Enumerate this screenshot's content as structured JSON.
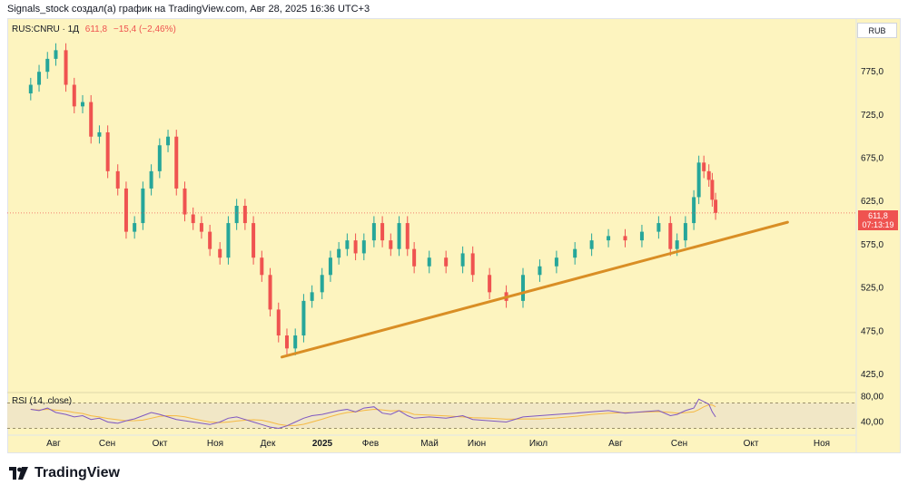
{
  "header": {
    "attribution": "Signals_stock создал(а) график на TradingView.com, Авг 28, 2025 16:36 UTC+3"
  },
  "legend": {
    "symbol": "RUS:CNRU · 1Д",
    "last": "611,8",
    "change": "−15,4 (−2,46%)"
  },
  "currency": "RUB",
  "price_tag": {
    "price": "611,8",
    "countdown": "07:13:19"
  },
  "rsi": {
    "label": "RSI (14, close)"
  },
  "brand": {
    "name": "TradingView"
  },
  "colors": {
    "up": "#26a69a",
    "down": "#ef5350",
    "trendline": "#d98e25",
    "rsi": "#7e57c2",
    "rsi_ma": "#f5b942",
    "background": "#fdf4bf"
  },
  "chart_data": [
    {
      "type": "candlestick",
      "title": "",
      "x": [
        "2024-07-15",
        "2024-07-20",
        "2024-07-25",
        "2024-07-30",
        "2024-08-05",
        "2024-08-10",
        "2024-08-15",
        "2024-08-20",
        "2024-08-25",
        "2024-08-30",
        "2024-09-05",
        "2024-09-10",
        "2024-09-15",
        "2024-09-20",
        "2024-09-25",
        "2024-09-30",
        "2024-10-05",
        "2024-10-10",
        "2024-10-15",
        "2024-10-20",
        "2024-10-25",
        "2024-10-30",
        "2024-11-05",
        "2024-11-10",
        "2024-11-15",
        "2024-11-20",
        "2024-11-25",
        "2024-11-30",
        "2024-12-05",
        "2024-12-10",
        "2024-12-15",
        "2024-12-20",
        "2024-12-25",
        "2024-12-30",
        "2025-01-05",
        "2025-01-10",
        "2025-01-15",
        "2025-01-20",
        "2025-01-25",
        "2025-01-30",
        "2025-02-05",
        "2025-02-10",
        "2025-02-15",
        "2025-02-20",
        "2025-02-25",
        "2025-03-01",
        "2025-03-10",
        "2025-03-20",
        "2025-03-30",
        "2025-04-05",
        "2025-04-15",
        "2025-04-25",
        "2025-05-05",
        "2025-05-15",
        "2025-05-25",
        "2025-06-05",
        "2025-06-15",
        "2025-06-25",
        "2025-07-05",
        "2025-07-15",
        "2025-07-25",
        "2025-08-01",
        "2025-08-05",
        "2025-08-10",
        "2025-08-15",
        "2025-08-18",
        "2025-08-21",
        "2025-08-24",
        "2025-08-26",
        "2025-08-28"
      ],
      "close": [
        760,
        775,
        790,
        800,
        760,
        735,
        740,
        700,
        705,
        660,
        640,
        590,
        600,
        640,
        660,
        690,
        700,
        640,
        610,
        600,
        590,
        570,
        560,
        600,
        620,
        600,
        560,
        540,
        500,
        470,
        455,
        470,
        510,
        520,
        540,
        560,
        570,
        580,
        565,
        580,
        600,
        580,
        570,
        600,
        570,
        550,
        560,
        550,
        565,
        540,
        520,
        510,
        540,
        550,
        560,
        570,
        580,
        585,
        580,
        590,
        600,
        570,
        580,
        600,
        630,
        670,
        660,
        650,
        627,
        611.8
      ],
      "ylim": [
        405,
        835
      ],
      "y_ticks": [
        "425,0",
        "475,0",
        "525,0",
        "575,0",
        "625,0",
        "675,0",
        "725,0",
        "775,0"
      ],
      "x_labels": [
        "Авг",
        "Сен",
        "Окт",
        "Ноя",
        "Дек",
        "2025",
        "Фев",
        "Май",
        "Июн",
        "Июл",
        "Авг",
        "Сен",
        "Окт",
        "Ноя"
      ],
      "current_price": 611.8,
      "trendline": {
        "from": [
          "2024-12-12",
          445
        ],
        "to": [
          "2025-10-10",
          601
        ]
      }
    },
    {
      "type": "line",
      "title": "RSI (14, close)",
      "ylim": [
        25,
        85
      ],
      "y_ticks": [
        "40,00",
        "80,00"
      ],
      "bands": [
        30,
        70
      ],
      "values": [
        60,
        58,
        62,
        55,
        52,
        48,
        50,
        44,
        46,
        40,
        38,
        42,
        45,
        50,
        55,
        52,
        48,
        44,
        42,
        40,
        38,
        36,
        40,
        46,
        48,
        44,
        40,
        36,
        32,
        30,
        34,
        40,
        46,
        50,
        52,
        55,
        58,
        60,
        56,
        62,
        64,
        54,
        52,
        58,
        50,
        46,
        48,
        46,
        50,
        44,
        42,
        40,
        48,
        50,
        52,
        54,
        56,
        58,
        54,
        56,
        58,
        50,
        52,
        58,
        62,
        76,
        72,
        68,
        56,
        48
      ]
    }
  ]
}
